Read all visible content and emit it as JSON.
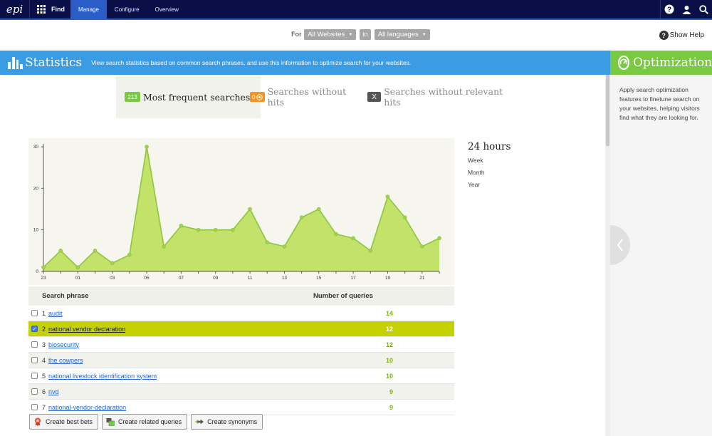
{
  "topnav": {
    "product": "Find",
    "tabs": [
      {
        "label": "Manage",
        "active": true
      },
      {
        "label": "Configure",
        "active": false
      },
      {
        "label": "Overview",
        "active": false
      }
    ],
    "icons": [
      "epi-logo-icon",
      "apps-grid-icon",
      "help-icon",
      "user-icon",
      "search-icon"
    ]
  },
  "filters": {
    "for_label": "For",
    "site": "All Websites",
    "in_label": "in",
    "language": "All languages"
  },
  "help": {
    "label": "Show Help"
  },
  "statistics": {
    "title": "Statistics",
    "description": "View search statistics based on common search phrases, and use this information to optimize search for your websites."
  },
  "optimization": {
    "title": "Optimization",
    "description": "Apply search optimization features to finetune search on your websites, helping visitors find what they are looking for."
  },
  "view_tabs": [
    {
      "label": "Most frequent searches",
      "badge": "213",
      "active": true
    },
    {
      "label": "Searches without hits",
      "badge": "0",
      "active": false
    },
    {
      "label": "Searches without relevant hits",
      "badge": "X",
      "active": false
    }
  ],
  "time_range": {
    "current": "24 hours",
    "options": [
      "Week",
      "Month",
      "Year"
    ]
  },
  "chart_data": {
    "type": "area",
    "x": [
      "23",
      "00",
      "01",
      "02",
      "03",
      "04",
      "05",
      "06",
      "07",
      "08",
      "09",
      "10",
      "11",
      "12",
      "13",
      "14",
      "15",
      "16",
      "17",
      "18",
      "19",
      "20",
      "21",
      "22"
    ],
    "xticks": [
      "23",
      "01",
      "03",
      "05",
      "07",
      "09",
      "11",
      "13",
      "15",
      "17",
      "19",
      "21"
    ],
    "values": [
      1,
      5,
      1,
      5,
      2,
      4,
      30,
      6,
      11,
      10,
      10,
      10,
      15,
      7,
      6,
      13,
      15,
      9,
      8,
      5,
      18,
      13,
      6,
      8
    ],
    "ylim": [
      0,
      30
    ],
    "yticks": [
      0,
      10,
      20,
      30
    ],
    "grid": false,
    "colors": {
      "fill": "#c2e26a",
      "line": "#8cc63f",
      "marker": "#a5d14e"
    }
  },
  "table": {
    "headers": {
      "phrase": "Search phrase",
      "count": "Number of queries"
    },
    "rows": [
      {
        "rank": "1",
        "phrase": "audit",
        "count": "14",
        "checked": false
      },
      {
        "rank": "2",
        "phrase": "national vendor declaration",
        "count": "12",
        "checked": true
      },
      {
        "rank": "3",
        "phrase": "biosecurity",
        "count": "12",
        "checked": false
      },
      {
        "rank": "4",
        "phrase": "the cowpers",
        "count": "10",
        "checked": false
      },
      {
        "rank": "5",
        "phrase": "national livestock identification system",
        "count": "10",
        "checked": false
      },
      {
        "rank": "6",
        "phrase": "nvd",
        "count": "9",
        "checked": false
      },
      {
        "rank": "7",
        "phrase": "national-vendor-declaration",
        "count": "9",
        "checked": false
      }
    ]
  },
  "actions": {
    "best_bets": "Create best bets",
    "related": "Create related queries",
    "synonyms": "Create synonyms"
  },
  "colors": {
    "nav": "#0b0f48",
    "nav_active": "#2b5dc7",
    "stats_bar": "#3b9be3",
    "opt_bar": "#7ac943",
    "selected_row": "#c5d100",
    "count_green": "#7ab51d"
  }
}
